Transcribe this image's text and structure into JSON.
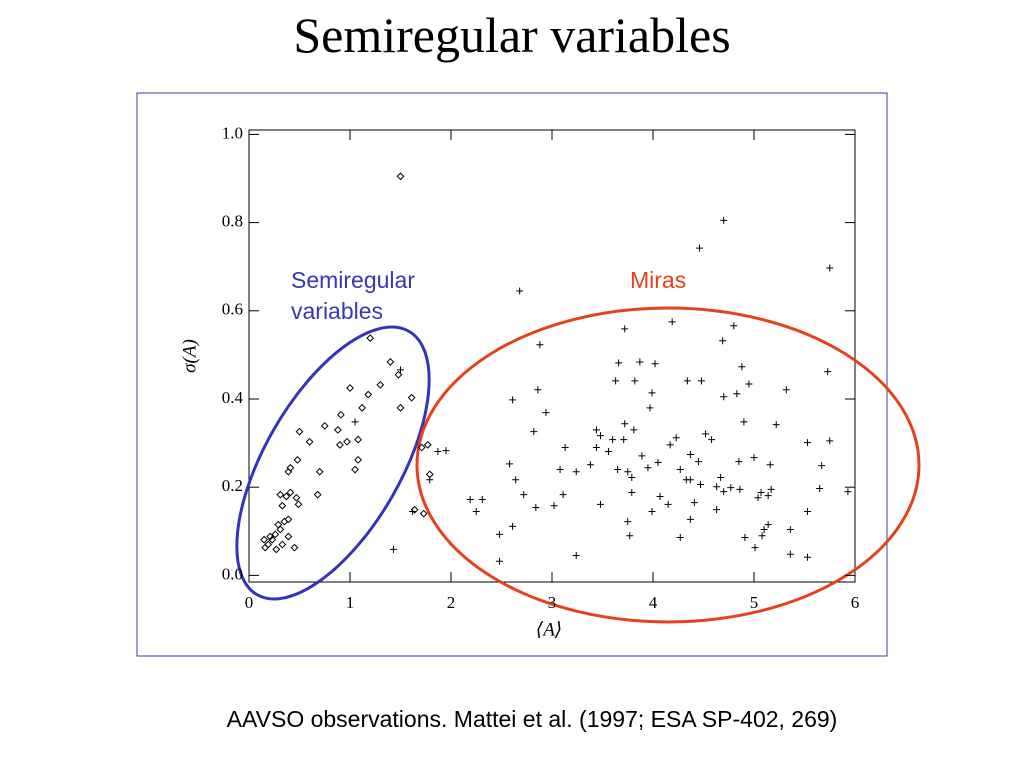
{
  "chart_data": {
    "type": "scatter",
    "title": "Semiregular variables",
    "xlabel": "⟨A⟩",
    "ylabel": "σ(A)",
    "caption": "AAVSO observations. Mattei et al. (1997; ESA SP-402, 269)",
    "annotations": [
      {
        "text": "Semiregular variables",
        "color": "#3737b8"
      },
      {
        "text": "Miras",
        "color": "#e5421c"
      }
    ],
    "xlim": [
      0,
      6
    ],
    "ylim": [
      -0.015,
      1.01
    ],
    "xticks": [
      0,
      1,
      2,
      3,
      4,
      5,
      6
    ],
    "yticks": [
      {
        "value": 0,
        "label": "0.0"
      },
      {
        "value": 0.2,
        "label": "0.2"
      },
      {
        "value": 0.4,
        "label": "0.4"
      },
      {
        "value": 0.6,
        "label": "0.6"
      },
      {
        "value": 0.8,
        "label": "0.8"
      },
      {
        "value": 1.0,
        "label": "1.0"
      }
    ],
    "series": [
      {
        "marker": "diamond",
        "color": "#000000",
        "x": [
          1.5,
          0.15,
          0.19,
          0.23,
          0.16,
          0.21,
          0.26,
          0.31,
          0.35,
          0.29,
          0.39,
          0.33,
          0.31,
          0.37,
          0.41,
          0.47,
          0.49,
          0.45,
          0.33,
          0.39,
          0.27,
          0.39,
          0.41,
          0.48,
          0.5,
          0.7,
          0.68,
          0.75,
          0.88,
          0.9,
          0.91,
          1.0,
          1.05,
          1.08,
          1.12,
          1.08,
          1.18,
          1.3,
          1.4,
          1.48,
          1.5,
          1.61,
          1.2,
          1.64,
          1.71,
          1.77,
          1.79,
          1.73,
          0.6,
          0.97
        ],
        "values": [
          0.905,
          0.081,
          0.07,
          0.081,
          0.063,
          0.088,
          0.093,
          0.104,
          0.122,
          0.115,
          0.127,
          0.158,
          0.183,
          0.179,
          0.188,
          0.176,
          0.161,
          0.063,
          0.07,
          0.088,
          0.059,
          0.235,
          0.244,
          0.262,
          0.326,
          0.235,
          0.183,
          0.339,
          0.33,
          0.296,
          0.364,
          0.425,
          0.24,
          0.262,
          0.38,
          0.308,
          0.41,
          0.432,
          0.484,
          0.455,
          0.38,
          0.403,
          0.538,
          0.149,
          0.29,
          0.296,
          0.229,
          0.14,
          0.303,
          0.303
        ]
      },
      {
        "marker": "plus",
        "color": "#000000",
        "x": [
          4.7,
          4.46,
          5.75,
          2.68,
          4.19,
          4.8,
          3.72,
          4.69,
          2.88,
          3.66,
          3.87,
          4.02,
          4.88,
          5.73,
          3.63,
          3.82,
          4.34,
          4.48,
          4.95,
          5.32,
          1.5,
          2.86,
          3.99,
          4.7,
          4.83,
          2.61,
          2.94,
          3.97,
          1.05,
          2.82,
          3.72,
          3.81,
          3.44,
          3.48,
          3.6,
          4.23,
          4.52,
          4.58,
          4.9,
          5.22,
          5.53,
          5.75,
          3.13,
          3.44,
          3.56,
          3.71,
          3.89,
          4.05,
          4.17,
          4.37,
          4.45,
          4.85,
          5.0,
          5.16,
          5.67,
          1.87,
          1.95,
          2.58,
          3.08,
          3.24,
          3.38,
          3.65,
          3.75,
          3.95,
          4.27,
          4.37,
          4.67,
          1.79,
          2.64,
          3.79,
          4.33,
          4.47,
          4.63,
          4.7,
          4.77,
          4.86,
          5.07,
          5.17,
          5.65,
          2.19,
          2.31,
          2.72,
          3.11,
          3.48,
          3.79,
          4.07,
          4.15,
          4.41,
          4.63,
          5.04,
          5.14,
          5.93,
          2.25,
          2.84,
          3.02,
          3.99,
          4.37,
          3.75,
          5.14,
          5.36,
          5.53,
          2.61,
          1.62,
          2.48,
          3.77,
          4.27,
          4.91,
          5.08,
          5.1,
          5.01,
          5.36,
          5.53,
          3.24,
          2.48,
          1.43
        ],
        "values": [
          0.805,
          0.742,
          0.697,
          0.645,
          0.575,
          0.566,
          0.559,
          0.532,
          0.523,
          0.482,
          0.484,
          0.48,
          0.473,
          0.462,
          0.441,
          0.441,
          0.441,
          0.441,
          0.434,
          0.421,
          0.466,
          0.421,
          0.414,
          0.405,
          0.412,
          0.398,
          0.369,
          0.38,
          0.348,
          0.326,
          0.344,
          0.33,
          0.33,
          0.317,
          0.308,
          0.312,
          0.321,
          0.308,
          0.348,
          0.342,
          0.301,
          0.305,
          0.29,
          0.29,
          0.281,
          0.308,
          0.271,
          0.256,
          0.296,
          0.274,
          0.258,
          0.258,
          0.267,
          0.251,
          0.249,
          0.281,
          0.283,
          0.253,
          0.24,
          0.235,
          0.251,
          0.24,
          0.235,
          0.244,
          0.24,
          0.217,
          0.222,
          0.217,
          0.217,
          0.222,
          0.217,
          0.206,
          0.201,
          0.19,
          0.199,
          0.195,
          0.188,
          0.195,
          0.197,
          0.172,
          0.172,
          0.183,
          0.183,
          0.161,
          0.188,
          0.179,
          0.161,
          0.165,
          0.149,
          0.176,
          0.181,
          0.19,
          0.145,
          0.154,
          0.158,
          0.145,
          0.127,
          0.122,
          0.115,
          0.104,
          0.145,
          0.111,
          0.145,
          0.093,
          0.09,
          0.086,
          0.086,
          0.09,
          0.104,
          0.063,
          0.048,
          0.041,
          0.045,
          0.032,
          0.059
        ]
      }
    ]
  }
}
